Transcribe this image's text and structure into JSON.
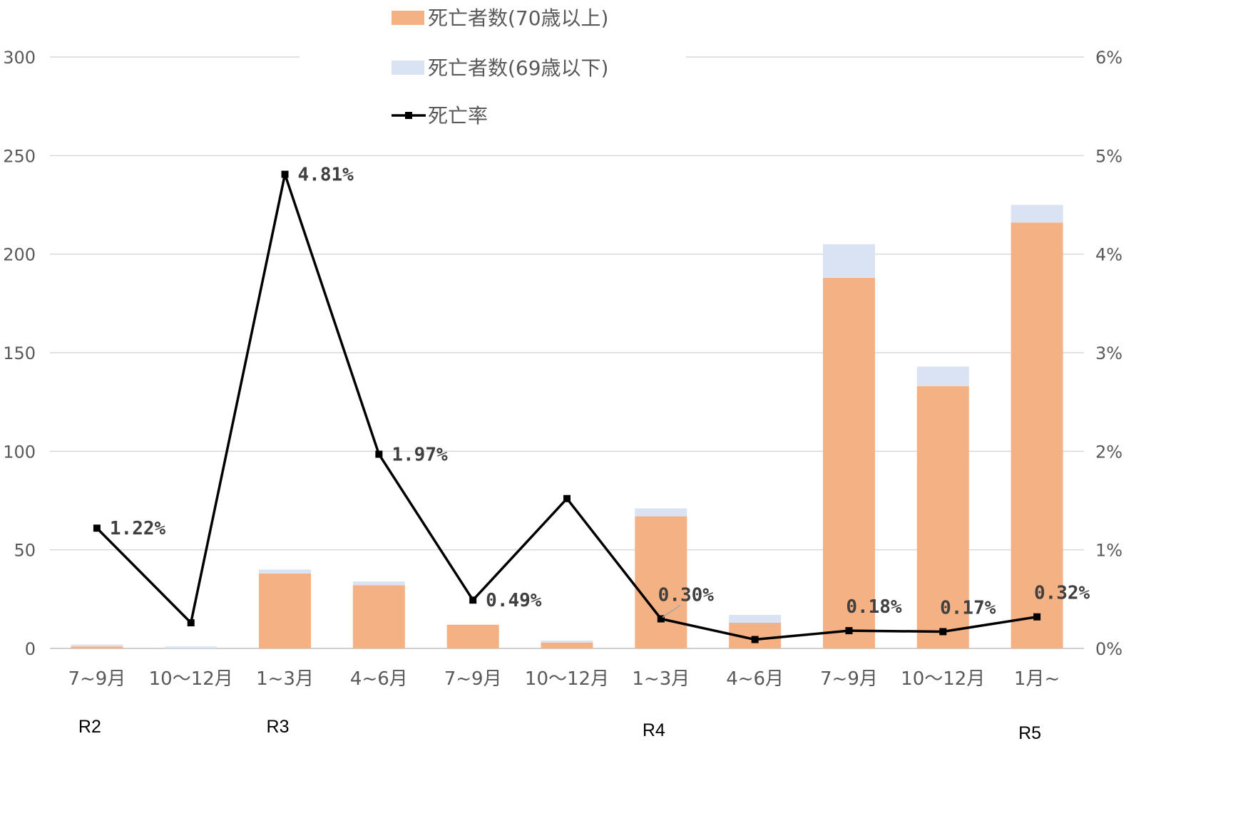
{
  "chart_data": {
    "type": "bar",
    "categories": [
      "7~9月",
      "10～12月",
      "1~3月",
      "4~6月",
      "7~9月",
      "10～12月",
      "1~3月",
      "4~6月",
      "7~9月",
      "10～12月",
      "1月~"
    ],
    "era_labels": [
      {
        "label": "R2",
        "index": 0
      },
      {
        "label": "R3",
        "index": 2
      },
      {
        "label": "R4",
        "index": 6
      },
      {
        "label": "R5",
        "index": 10
      }
    ],
    "series": [
      {
        "name": "死亡者数(70歳以上)",
        "type": "bar",
        "stack": "deaths",
        "axis": "left",
        "color": "#F4B183",
        "values": [
          1,
          0,
          38,
          32,
          12,
          3,
          67,
          13,
          188,
          133,
          216
        ]
      },
      {
        "name": "死亡者数(69歳以下)",
        "type": "bar",
        "stack": "deaths",
        "axis": "left",
        "color": "#DAE3F3",
        "values": [
          1,
          1,
          2,
          2,
          0,
          1,
          4,
          4,
          17,
          10,
          9
        ]
      },
      {
        "name": "死亡率",
        "type": "line",
        "axis": "right",
        "color": "#000000",
        "values": [
          1.22,
          0.26,
          4.81,
          1.97,
          0.49,
          1.52,
          0.3,
          0.09,
          0.18,
          0.17,
          0.32
        ],
        "data_labels": [
          "1.22%",
          null,
          "4.81%",
          "1.97%",
          "0.49%",
          null,
          "0.30%",
          null,
          "0.18%",
          "0.17%",
          "0.32%"
        ]
      }
    ],
    "left_axis": {
      "min": 0,
      "max": 300,
      "ticks": [
        "0",
        "50",
        "100",
        "150",
        "200",
        "250",
        "300"
      ]
    },
    "right_axis": {
      "min": 0,
      "max": 6,
      "ticks": [
        "0%",
        "1%",
        "2%",
        "3%",
        "4%",
        "5%",
        "6%"
      ]
    },
    "grid": true,
    "legend_position": "top-center"
  }
}
